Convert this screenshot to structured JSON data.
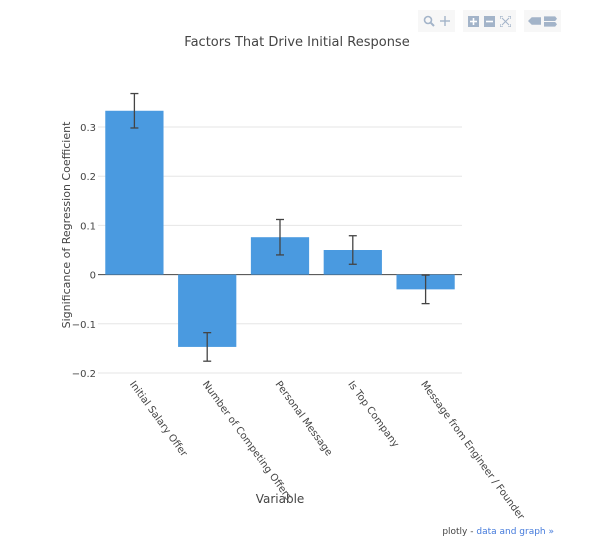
{
  "chart_data": {
    "type": "bar",
    "title": "Factors That Drive Initial Response",
    "xlabel": "Variable",
    "ylabel": "Significance of Regression Coefficient",
    "categories": [
      "Initial Salary Offer",
      "Number of Competing Offers",
      "Personal Message",
      "Is Top Company",
      "Message from Engineer / Founder"
    ],
    "values": [
      0.333,
      -0.147,
      0.076,
      0.05,
      -0.03
    ],
    "errors": [
      0.035,
      0.029,
      0.036,
      0.029,
      0.029
    ],
    "ylim": [
      -0.2,
      0.37
    ],
    "yticks": [
      0.3,
      0.2,
      0.1,
      0,
      -0.1,
      -0.2
    ],
    "ytick_labels": [
      "0.3",
      "0.2",
      "0.1",
      "0",
      "−0.1",
      "−0.2"
    ],
    "grid": true,
    "legend": "none",
    "bar_color": "#4a9ae0"
  },
  "footer": {
    "prefix": "plotly - ",
    "link": "data and graph »"
  },
  "modebar": {
    "icons": [
      "zoom-icon",
      "pan-icon",
      "zoom-in-icon",
      "zoom-out-icon",
      "autoscale-icon",
      "hover-closest-icon",
      "hover-compare-icon"
    ]
  }
}
